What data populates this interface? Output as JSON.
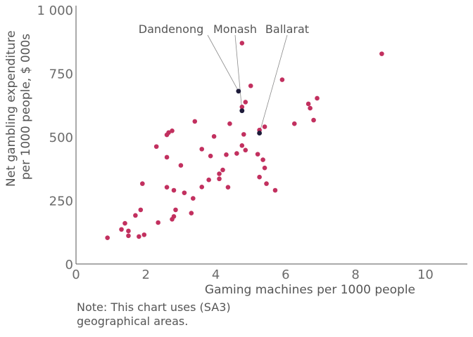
{
  "chart_data": {
    "type": "scatter",
    "xlabel": "Gaming machines per 1000 people",
    "ylabel": "Net gambling expenditure per 1000 people, $ 000s",
    "ylabel_lines": [
      "Net gambling expenditure",
      "per 1000 people, $ 000s"
    ],
    "xlim": [
      0,
      11.2
    ],
    "ylim": [
      0,
      1000
    ],
    "x_ticks": [
      0,
      2,
      4,
      6,
      8,
      10
    ],
    "y_ticks": [
      0,
      250,
      500,
      750,
      1000
    ],
    "x_tick_labels": [
      "0",
      "2",
      "4",
      "6",
      "8",
      "10"
    ],
    "y_tick_labels": [
      "0",
      "250",
      "500",
      "750",
      "1 000"
    ],
    "grid": false,
    "colors": {
      "points": "#c2305f",
      "highlight": "#1e1b3a",
      "text": "#6b6b6b",
      "leader": "#8a8a8a"
    },
    "series": [
      {
        "points": [
          [
            0.9,
            103
          ],
          [
            1.3,
            136
          ],
          [
            1.4,
            160
          ],
          [
            1.5,
            111
          ],
          [
            1.5,
            130
          ],
          [
            1.7,
            191
          ],
          [
            1.8,
            108
          ],
          [
            1.85,
            213
          ],
          [
            1.9,
            316
          ],
          [
            1.95,
            115
          ],
          [
            2.3,
            462
          ],
          [
            2.35,
            163
          ],
          [
            2.6,
            302
          ],
          [
            2.6,
            420
          ],
          [
            2.6,
            508
          ],
          [
            2.65,
            517
          ],
          [
            2.75,
            524
          ],
          [
            2.75,
            176
          ],
          [
            2.8,
            187
          ],
          [
            2.8,
            290
          ],
          [
            2.85,
            213
          ],
          [
            3.0,
            388
          ],
          [
            3.1,
            280
          ],
          [
            3.3,
            200
          ],
          [
            3.35,
            258
          ],
          [
            3.4,
            561
          ],
          [
            3.6,
            452
          ],
          [
            3.6,
            303
          ],
          [
            3.8,
            331
          ],
          [
            3.85,
            425
          ],
          [
            3.95,
            502
          ],
          [
            4.1,
            335
          ],
          [
            4.1,
            355
          ],
          [
            4.2,
            370
          ],
          [
            4.3,
            430
          ],
          [
            4.35,
            302
          ],
          [
            4.4,
            552
          ],
          [
            4.6,
            435
          ],
          [
            4.75,
            869
          ],
          [
            4.75,
            466
          ],
          [
            4.75,
            618
          ],
          [
            4.8,
            510
          ],
          [
            4.85,
            448
          ],
          [
            4.85,
            637
          ],
          [
            5.0,
            701
          ],
          [
            5.2,
            432
          ],
          [
            5.25,
            527
          ],
          [
            5.25,
            342
          ],
          [
            5.35,
            410
          ],
          [
            5.4,
            540
          ],
          [
            5.4,
            378
          ],
          [
            5.45,
            316
          ],
          [
            5.7,
            290
          ],
          [
            5.9,
            725
          ],
          [
            6.25,
            552
          ],
          [
            6.65,
            630
          ],
          [
            6.7,
            613
          ],
          [
            6.8,
            566
          ],
          [
            6.9,
            652
          ],
          [
            8.75,
            827
          ]
        ]
      }
    ],
    "highlighted": [
      {
        "label": "Dandenong",
        "x": 4.65,
        "y": 680
      },
      {
        "label": "Monash",
        "x": 4.75,
        "y": 603
      },
      {
        "label": "Ballarat",
        "x": 5.25,
        "y": 515
      }
    ],
    "note": "Note: This chart uses (SA3)\ngeographical areas."
  }
}
